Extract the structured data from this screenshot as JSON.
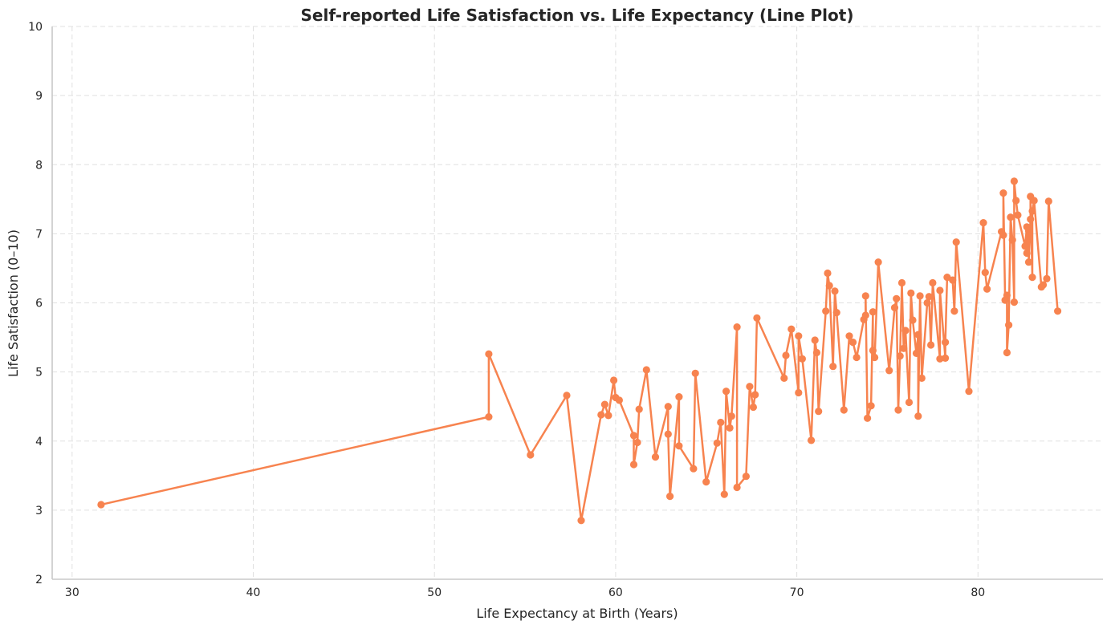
{
  "chart_data": {
    "type": "line",
    "title": "Self-reported Life Satisfaction vs. Life Expectancy (Line Plot)",
    "xlabel": "Life Expectancy at Birth (Years)",
    "ylabel": "Life Satisfaction (0–10)",
    "xlim": [
      28.9,
      86.9
    ],
    "ylim": [
      2,
      10
    ],
    "xticks": [
      30,
      40,
      50,
      60,
      70,
      80
    ],
    "yticks": [
      2,
      3,
      4,
      5,
      6,
      7,
      8,
      9,
      10
    ],
    "grid": true,
    "legend": "none",
    "color": "#f7834f",
    "series": [
      {
        "x": [
          31.6,
          53.0,
          53.0,
          55.3,
          57.3,
          58.1,
          59.2,
          59.4,
          59.6,
          59.9,
          60.0,
          60.2,
          61.0,
          61.0,
          61.2,
          61.3,
          61.7,
          62.2,
          62.9,
          62.9,
          63.0,
          63.5,
          63.5,
          64.3,
          64.4,
          65.0,
          65.6,
          65.8,
          66.0,
          66.1,
          66.3,
          66.4,
          66.7,
          66.7,
          67.2,
          67.4,
          67.6,
          67.7,
          67.8,
          69.3,
          69.4,
          69.7,
          70.1,
          70.1,
          70.3,
          70.8,
          71.0,
          71.1,
          71.2,
          71.6,
          71.7,
          71.8,
          72.0,
          72.1,
          72.2,
          72.6,
          72.9,
          73.1,
          73.3,
          73.7,
          73.8,
          73.8,
          73.9,
          74.1,
          74.2,
          74.2,
          74.3,
          74.5,
          75.1,
          75.4,
          75.5,
          75.6,
          75.7,
          75.8,
          75.9,
          76.0,
          76.2,
          76.3,
          76.4,
          76.6,
          76.7,
          76.7,
          76.8,
          76.9,
          77.2,
          77.3,
          77.4,
          77.5,
          77.9,
          77.9,
          78.2,
          78.2,
          78.3,
          78.6,
          78.7,
          78.8,
          79.5,
          80.3,
          80.4,
          80.5,
          81.3,
          81.4,
          81.4,
          81.5,
          81.6,
          81.6,
          81.7,
          81.8,
          81.9,
          82.0,
          82.0,
          82.1,
          82.2,
          82.6,
          82.7,
          82.7,
          82.8,
          82.8,
          82.9,
          82.9,
          83.0,
          83.0,
          83.1,
          83.5,
          83.6,
          83.8,
          83.9,
          84.4
        ],
        "y": [
          3.08,
          4.35,
          5.26,
          3.8,
          4.66,
          2.85,
          4.38,
          4.53,
          4.37,
          4.88,
          4.63,
          4.59,
          4.08,
          3.66,
          3.98,
          4.46,
          5.03,
          3.77,
          4.5,
          4.1,
          3.2,
          4.64,
          3.93,
          3.6,
          4.98,
          3.41,
          3.97,
          4.27,
          3.23,
          4.72,
          4.19,
          4.36,
          5.65,
          3.33,
          3.49,
          4.79,
          4.49,
          4.67,
          5.78,
          4.91,
          5.24,
          5.62,
          4.7,
          5.52,
          5.19,
          4.01,
          5.46,
          5.28,
          4.43,
          5.88,
          6.43,
          6.25,
          5.08,
          6.17,
          5.86,
          4.45,
          5.52,
          5.43,
          5.21,
          5.76,
          5.82,
          6.1,
          4.33,
          4.51,
          5.87,
          5.31,
          5.21,
          6.59,
          5.02,
          5.93,
          6.06,
          4.45,
          5.23,
          6.29,
          5.34,
          5.6,
          4.56,
          6.14,
          5.75,
          5.27,
          5.54,
          4.36,
          6.1,
          4.91,
          6.0,
          6.09,
          5.39,
          6.29,
          5.19,
          6.18,
          5.2,
          5.43,
          6.37,
          6.33,
          5.88,
          6.88,
          4.72,
          7.16,
          6.44,
          6.2,
          7.03,
          6.98,
          7.59,
          6.04,
          6.11,
          5.28,
          5.68,
          7.24,
          6.91,
          6.01,
          7.76,
          7.48,
          7.27,
          6.82,
          7.1,
          6.72,
          7.04,
          6.59,
          7.21,
          7.54,
          6.37,
          7.33,
          7.48,
          6.23,
          6.26,
          6.35,
          7.47,
          5.88
        ]
      }
    ]
  }
}
